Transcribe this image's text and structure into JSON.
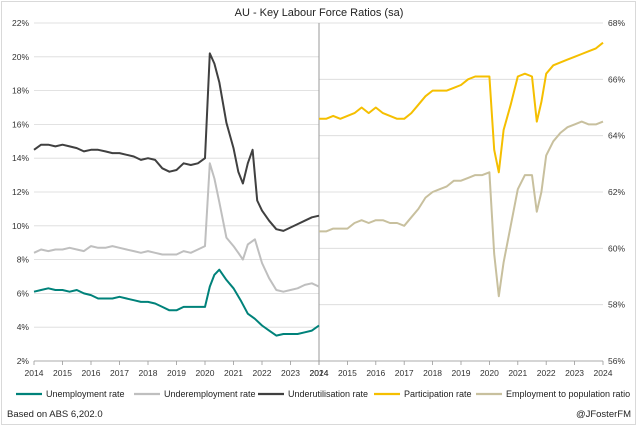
{
  "chart_data": {
    "type": "line",
    "title": "AU - Key Labour Force Ratios (sa)",
    "source_note": "Based on ABS 6,202.0",
    "credit": "@JFosterFM",
    "panels": [
      {
        "x_ticks": [
          "2014",
          "2015",
          "2016",
          "2017",
          "2018",
          "2019",
          "2020",
          "2021",
          "2022",
          "2023",
          "2024"
        ],
        "ylim": [
          2,
          22
        ],
        "y_ticks": [
          "2%",
          "4%",
          "6%",
          "8%",
          "10%",
          "12%",
          "14%",
          "16%",
          "18%",
          "20%",
          "22%"
        ],
        "series": [
          {
            "name": "Unemployment rate",
            "color": "#00827a",
            "points": [
              [
                2014.0,
                6.1
              ],
              [
                2014.25,
                6.2
              ],
              [
                2014.5,
                6.3
              ],
              [
                2014.75,
                6.2
              ],
              [
                2015.0,
                6.2
              ],
              [
                2015.25,
                6.1
              ],
              [
                2015.5,
                6.2
              ],
              [
                2015.75,
                6.0
              ],
              [
                2016.0,
                5.9
              ],
              [
                2016.25,
                5.7
              ],
              [
                2016.5,
                5.7
              ],
              [
                2016.75,
                5.7
              ],
              [
                2017.0,
                5.8
              ],
              [
                2017.25,
                5.7
              ],
              [
                2017.5,
                5.6
              ],
              [
                2017.75,
                5.5
              ],
              [
                2018.0,
                5.5
              ],
              [
                2018.25,
                5.4
              ],
              [
                2018.5,
                5.2
              ],
              [
                2018.75,
                5.0
              ],
              [
                2019.0,
                5.0
              ],
              [
                2019.25,
                5.2
              ],
              [
                2019.5,
                5.2
              ],
              [
                2019.75,
                5.2
              ],
              [
                2020.0,
                5.2
              ],
              [
                2020.17,
                6.4
              ],
              [
                2020.33,
                7.1
              ],
              [
                2020.5,
                7.4
              ],
              [
                2020.75,
                6.8
              ],
              [
                2021.0,
                6.3
              ],
              [
                2021.25,
                5.6
              ],
              [
                2021.5,
                4.8
              ],
              [
                2021.75,
                4.5
              ],
              [
                2022.0,
                4.1
              ],
              [
                2022.25,
                3.8
              ],
              [
                2022.5,
                3.5
              ],
              [
                2022.75,
                3.6
              ],
              [
                2023.0,
                3.6
              ],
              [
                2023.25,
                3.6
              ],
              [
                2023.5,
                3.7
              ],
              [
                2023.75,
                3.8
              ],
              [
                2024.0,
                4.1
              ]
            ]
          },
          {
            "name": "Underemployment rate",
            "color": "#bfbfbf",
            "points": [
              [
                2014.0,
                8.4
              ],
              [
                2014.25,
                8.6
              ],
              [
                2014.5,
                8.5
              ],
              [
                2014.75,
                8.6
              ],
              [
                2015.0,
                8.6
              ],
              [
                2015.25,
                8.7
              ],
              [
                2015.5,
                8.6
              ],
              [
                2015.75,
                8.5
              ],
              [
                2016.0,
                8.8
              ],
              [
                2016.25,
                8.7
              ],
              [
                2016.5,
                8.7
              ],
              [
                2016.75,
                8.8
              ],
              [
                2017.0,
                8.7
              ],
              [
                2017.25,
                8.6
              ],
              [
                2017.5,
                8.5
              ],
              [
                2017.75,
                8.4
              ],
              [
                2018.0,
                8.5
              ],
              [
                2018.25,
                8.4
              ],
              [
                2018.5,
                8.3
              ],
              [
                2018.75,
                8.3
              ],
              [
                2019.0,
                8.3
              ],
              [
                2019.25,
                8.5
              ],
              [
                2019.5,
                8.4
              ],
              [
                2019.75,
                8.6
              ],
              [
                2020.0,
                8.8
              ],
              [
                2020.17,
                13.7
              ],
              [
                2020.33,
                12.8
              ],
              [
                2020.5,
                11.4
              ],
              [
                2020.75,
                9.3
              ],
              [
                2021.0,
                8.8
              ],
              [
                2021.17,
                8.4
              ],
              [
                2021.33,
                8.0
              ],
              [
                2021.5,
                8.9
              ],
              [
                2021.75,
                9.2
              ],
              [
                2022.0,
                7.8
              ],
              [
                2022.25,
                6.9
              ],
              [
                2022.5,
                6.2
              ],
              [
                2022.75,
                6.1
              ],
              [
                2023.0,
                6.2
              ],
              [
                2023.25,
                6.3
              ],
              [
                2023.5,
                6.5
              ],
              [
                2023.75,
                6.6
              ],
              [
                2024.0,
                6.4
              ]
            ]
          },
          {
            "name": "Underutilisation rate",
            "color": "#404040",
            "points": [
              [
                2014.0,
                14.5
              ],
              [
                2014.25,
                14.8
              ],
              [
                2014.5,
                14.8
              ],
              [
                2014.75,
                14.7
              ],
              [
                2015.0,
                14.8
              ],
              [
                2015.25,
                14.7
              ],
              [
                2015.5,
                14.6
              ],
              [
                2015.75,
                14.4
              ],
              [
                2016.0,
                14.5
              ],
              [
                2016.25,
                14.5
              ],
              [
                2016.5,
                14.4
              ],
              [
                2016.75,
                14.3
              ],
              [
                2017.0,
                14.3
              ],
              [
                2017.25,
                14.2
              ],
              [
                2017.5,
                14.1
              ],
              [
                2017.75,
                13.9
              ],
              [
                2018.0,
                14.0
              ],
              [
                2018.25,
                13.9
              ],
              [
                2018.5,
                13.4
              ],
              [
                2018.75,
                13.2
              ],
              [
                2019.0,
                13.3
              ],
              [
                2019.25,
                13.7
              ],
              [
                2019.5,
                13.6
              ],
              [
                2019.75,
                13.7
              ],
              [
                2020.0,
                14.0
              ],
              [
                2020.17,
                20.2
              ],
              [
                2020.33,
                19.6
              ],
              [
                2020.5,
                18.5
              ],
              [
                2020.75,
                16.1
              ],
              [
                2021.0,
                14.6
              ],
              [
                2021.17,
                13.2
              ],
              [
                2021.33,
                12.5
              ],
              [
                2021.5,
                13.7
              ],
              [
                2021.67,
                14.5
              ],
              [
                2021.83,
                11.5
              ],
              [
                2022.0,
                10.9
              ],
              [
                2022.25,
                10.3
              ],
              [
                2022.5,
                9.8
              ],
              [
                2022.75,
                9.7
              ],
              [
                2023.0,
                9.9
              ],
              [
                2023.25,
                10.1
              ],
              [
                2023.5,
                10.3
              ],
              [
                2023.75,
                10.5
              ],
              [
                2024.0,
                10.6
              ]
            ]
          }
        ]
      },
      {
        "x_ticks": [
          "2014",
          "2015",
          "2016",
          "2017",
          "2018",
          "2019",
          "2020",
          "2021",
          "2022",
          "2023",
          "2024"
        ],
        "ylim": [
          56,
          68
        ],
        "y_ticks": [
          "56%",
          "58%",
          "60%",
          "62%",
          "64%",
          "66%",
          "68%"
        ],
        "series": [
          {
            "name": "Participation rate",
            "color": "#f5bf00",
            "points": [
              [
                2014.0,
                64.6
              ],
              [
                2014.25,
                64.6
              ],
              [
                2014.5,
                64.7
              ],
              [
                2014.75,
                64.6
              ],
              [
                2015.0,
                64.7
              ],
              [
                2015.25,
                64.8
              ],
              [
                2015.5,
                65.0
              ],
              [
                2015.75,
                64.8
              ],
              [
                2016.0,
                65.0
              ],
              [
                2016.25,
                64.8
              ],
              [
                2016.5,
                64.7
              ],
              [
                2016.75,
                64.6
              ],
              [
                2017.0,
                64.6
              ],
              [
                2017.25,
                64.8
              ],
              [
                2017.5,
                65.1
              ],
              [
                2017.75,
                65.4
              ],
              [
                2018.0,
                65.6
              ],
              [
                2018.25,
                65.6
              ],
              [
                2018.5,
                65.6
              ],
              [
                2018.75,
                65.7
              ],
              [
                2019.0,
                65.8
              ],
              [
                2019.25,
                66.0
              ],
              [
                2019.5,
                66.1
              ],
              [
                2019.75,
                66.1
              ],
              [
                2020.0,
                66.1
              ],
              [
                2020.17,
                63.5
              ],
              [
                2020.33,
                62.7
              ],
              [
                2020.5,
                64.2
              ],
              [
                2020.75,
                65.1
              ],
              [
                2021.0,
                66.1
              ],
              [
                2021.25,
                66.2
              ],
              [
                2021.5,
                66.1
              ],
              [
                2021.67,
                64.5
              ],
              [
                2021.83,
                65.2
              ],
              [
                2022.0,
                66.2
              ],
              [
                2022.25,
                66.5
              ],
              [
                2022.5,
                66.6
              ],
              [
                2022.75,
                66.7
              ],
              [
                2023.0,
                66.8
              ],
              [
                2023.25,
                66.9
              ],
              [
                2023.5,
                67.0
              ],
              [
                2023.75,
                67.1
              ],
              [
                2024.0,
                67.3
              ]
            ]
          },
          {
            "name": "Employment to population ratio",
            "color": "#c8c09e",
            "points": [
              [
                2014.0,
                60.6
              ],
              [
                2014.25,
                60.6
              ],
              [
                2014.5,
                60.7
              ],
              [
                2014.75,
                60.7
              ],
              [
                2015.0,
                60.7
              ],
              [
                2015.25,
                60.9
              ],
              [
                2015.5,
                61.0
              ],
              [
                2015.75,
                60.9
              ],
              [
                2016.0,
                61.0
              ],
              [
                2016.25,
                61.0
              ],
              [
                2016.5,
                60.9
              ],
              [
                2016.75,
                60.9
              ],
              [
                2017.0,
                60.8
              ],
              [
                2017.25,
                61.1
              ],
              [
                2017.5,
                61.4
              ],
              [
                2017.75,
                61.8
              ],
              [
                2018.0,
                62.0
              ],
              [
                2018.25,
                62.1
              ],
              [
                2018.5,
                62.2
              ],
              [
                2018.75,
                62.4
              ],
              [
                2019.0,
                62.4
              ],
              [
                2019.25,
                62.5
              ],
              [
                2019.5,
                62.6
              ],
              [
                2019.75,
                62.6
              ],
              [
                2020.0,
                62.7
              ],
              [
                2020.17,
                59.8
              ],
              [
                2020.33,
                58.3
              ],
              [
                2020.5,
                59.5
              ],
              [
                2020.75,
                60.8
              ],
              [
                2021.0,
                62.1
              ],
              [
                2021.25,
                62.6
              ],
              [
                2021.5,
                62.6
              ],
              [
                2021.67,
                61.3
              ],
              [
                2021.83,
                62.0
              ],
              [
                2022.0,
                63.3
              ],
              [
                2022.25,
                63.8
              ],
              [
                2022.5,
                64.1
              ],
              [
                2022.75,
                64.3
              ],
              [
                2023.0,
                64.4
              ],
              [
                2023.25,
                64.5
              ],
              [
                2023.5,
                64.4
              ],
              [
                2023.75,
                64.4
              ],
              [
                2024.0,
                64.5
              ]
            ]
          }
        ]
      }
    ]
  }
}
